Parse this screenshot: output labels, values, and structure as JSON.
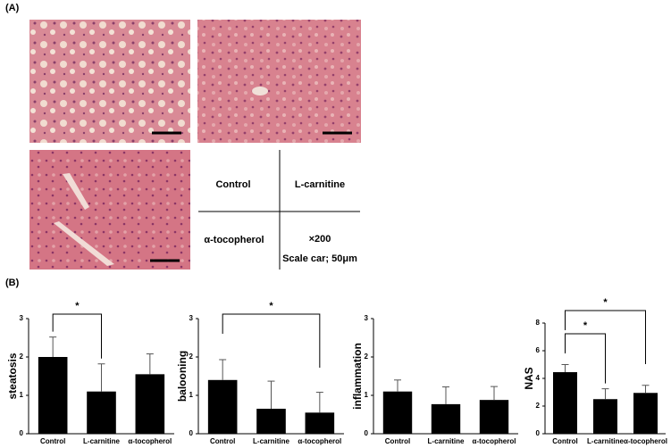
{
  "panel_a": {
    "label": "(A)",
    "cells": [
      "Control",
      "L-carnitine",
      "α-tocopherol"
    ],
    "magnification": "×200",
    "scale": "Scale car; 50μm"
  },
  "panel_b": {
    "label": "(B)"
  },
  "chart_data": [
    {
      "type": "bar",
      "y_label": "steatosis",
      "categories": [
        "Control",
        "L-carnitine",
        "α-tocopherol"
      ],
      "values": [
        2.0,
        1.1,
        1.55
      ],
      "errors": [
        0.52,
        0.72,
        0.53
      ],
      "color": "#000000",
      "ylim": [
        0,
        3
      ],
      "yticks": [
        0,
        1,
        2,
        3
      ],
      "significance": [
        {
          "from": 0,
          "to": 1,
          "label": "*"
        }
      ]
    },
    {
      "type": "bar",
      "y_label": "balooning",
      "categories": [
        "Control",
        "L-carnitine",
        "α-tocopherol"
      ],
      "values": [
        1.4,
        0.65,
        0.55
      ],
      "errors": [
        0.53,
        0.72,
        0.53
      ],
      "color": "#000000",
      "ylim": [
        0,
        3
      ],
      "yticks": [
        0,
        1,
        2,
        3
      ],
      "significance": [
        {
          "from": 0,
          "to": 2,
          "label": "*"
        }
      ]
    },
    {
      "type": "bar",
      "y_label": "inflammation",
      "categories": [
        "Control",
        "L-carnitine",
        "α-tocopherol"
      ],
      "values": [
        1.1,
        0.77,
        0.88
      ],
      "errors": [
        0.3,
        0.45,
        0.35
      ],
      "color": "#000000",
      "ylim": [
        0,
        3
      ],
      "yticks": [
        0,
        1,
        2,
        3
      ],
      "significance": []
    },
    {
      "type": "bar",
      "y_label": "NAS",
      "categories": [
        "Control",
        "L-carnitine",
        "α-tocopherol"
      ],
      "values": [
        4.45,
        2.5,
        2.95
      ],
      "errors": [
        0.55,
        0.75,
        0.55
      ],
      "color": "#000000",
      "ylim": [
        0,
        8
      ],
      "yticks": [
        0,
        2,
        4,
        6,
        8
      ],
      "significance": [
        {
          "from": 0,
          "to": 1,
          "label": "*"
        },
        {
          "from": 0,
          "to": 2,
          "label": "*"
        }
      ]
    }
  ]
}
